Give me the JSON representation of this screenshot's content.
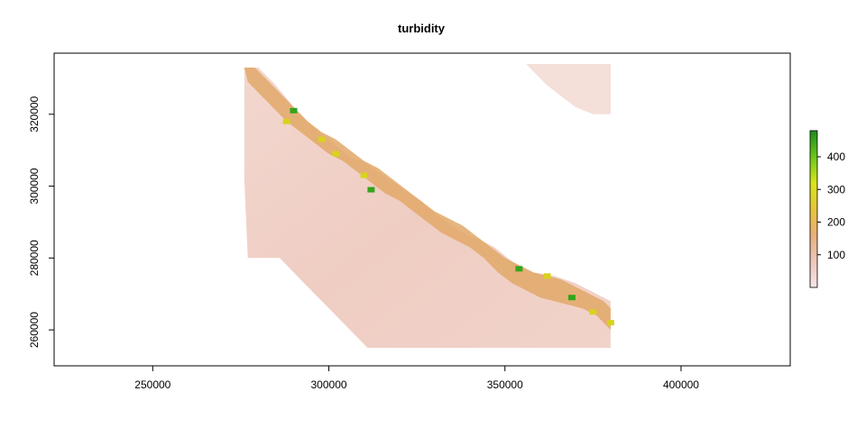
{
  "chart_data": {
    "type": "heatmap",
    "title": "turbidity",
    "xlabel": "",
    "ylabel": "",
    "xlim": [
      222000,
      431000
    ],
    "ylim": [
      250000,
      337000
    ],
    "x_ticks": [
      250000,
      300000,
      350000,
      400000
    ],
    "x_tick_labels": [
      "250000",
      "300000",
      "350000",
      "400000"
    ],
    "y_ticks": [
      260000,
      280000,
      300000,
      320000
    ],
    "y_tick_labels": [
      "260000",
      "280000",
      "300000",
      "320000"
    ],
    "grid": false,
    "legend": {
      "placement": "right",
      "type": "colorbar",
      "range": [
        0,
        480
      ],
      "ticks": [
        100,
        200,
        300,
        400
      ],
      "tick_labels": [
        "100",
        "200",
        "300",
        "400"
      ],
      "colors": [
        "#f5e6e6",
        "#edc6ba",
        "#e8b07a",
        "#e7c43a",
        "#d7e51a",
        "#6cc61b",
        "#1c8a1c"
      ]
    },
    "colors": {
      "water": "#efcdc3",
      "water_light": "#f4dfd9",
      "coastal_low": "#e5b38c",
      "coastal_mid": "#e2a868",
      "coastal_high": "#d9d21d",
      "max": "#33a51c"
    },
    "domain_outline": [
      [
        276000,
        333000
      ],
      [
        280000,
        333000
      ],
      [
        285000,
        328000
      ],
      [
        290000,
        322000
      ],
      [
        294000,
        318000
      ],
      [
        300000,
        313000
      ],
      [
        306000,
        308000
      ],
      [
        310000,
        307000
      ],
      [
        314000,
        304000
      ],
      [
        320000,
        300000
      ],
      [
        326000,
        296000
      ],
      [
        332000,
        291000
      ],
      [
        338000,
        287000
      ],
      [
        343000,
        285000
      ],
      [
        347000,
        283000
      ],
      [
        352000,
        279000
      ],
      [
        358000,
        276000
      ],
      [
        364000,
        275000
      ],
      [
        370000,
        273000
      ],
      [
        376000,
        270000
      ],
      [
        380000,
        268000
      ],
      [
        380000,
        255000
      ],
      [
        311000,
        255000
      ],
      [
        304000,
        262000
      ],
      [
        296000,
        270000
      ],
      [
        286000,
        280000
      ],
      [
        277000,
        280000
      ],
      [
        276000,
        302000
      ]
    ],
    "ne_patch_outline": [
      [
        356000,
        334000
      ],
      [
        380000,
        334000
      ],
      [
        380000,
        320000
      ],
      [
        375000,
        320000
      ],
      [
        370000,
        322000
      ],
      [
        362000,
        328000
      ]
    ],
    "coastal_band": [
      [
        [
          276000,
          333000
        ],
        [
          279000,
          333000
        ],
        [
          282000,
          330000
        ],
        [
          286000,
          326000
        ],
        [
          290000,
          322000
        ],
        [
          294000,
          318000
        ],
        [
          298000,
          315000
        ],
        [
          302000,
          313000
        ],
        [
          306000,
          310000
        ],
        [
          310000,
          307000
        ],
        [
          314000,
          305000
        ],
        [
          318000,
          302000
        ],
        [
          322000,
          299000
        ],
        [
          326000,
          296000
        ],
        [
          330000,
          293000
        ],
        [
          334000,
          291000
        ],
        [
          338000,
          289000
        ],
        [
          342000,
          286000
        ],
        [
          346000,
          283000
        ],
        [
          350000,
          280000
        ],
        [
          354000,
          278000
        ],
        [
          358000,
          276000
        ],
        [
          362000,
          275000
        ],
        [
          366000,
          274000
        ],
        [
          370000,
          272000
        ],
        [
          374000,
          270000
        ],
        [
          378000,
          268000
        ],
        [
          380000,
          266000
        ],
        [
          380000,
          260000
        ],
        [
          376000,
          264000
        ],
        [
          372000,
          266000
        ],
        [
          368000,
          267000
        ],
        [
          364000,
          268000
        ],
        [
          360000,
          269000
        ],
        [
          356000,
          271000
        ],
        [
          352000,
          273000
        ],
        [
          348000,
          276000
        ],
        [
          344000,
          280000
        ],
        [
          340000,
          283000
        ],
        [
          336000,
          285000
        ],
        [
          332000,
          287000
        ],
        [
          328000,
          290000
        ],
        [
          324000,
          293000
        ],
        [
          320000,
          296000
        ],
        [
          316000,
          298000
        ],
        [
          312000,
          301000
        ],
        [
          308000,
          304000
        ],
        [
          304000,
          307000
        ],
        [
          300000,
          309000
        ],
        [
          296000,
          312000
        ],
        [
          292000,
          315000
        ],
        [
          288000,
          318000
        ],
        [
          284000,
          322000
        ],
        [
          280000,
          326000
        ],
        [
          277000,
          329000
        ]
      ]
    ],
    "hotspots": [
      {
        "x": 290000,
        "y": 321000,
        "level": "max"
      },
      {
        "x": 288000,
        "y": 318000,
        "level": "high"
      },
      {
        "x": 298000,
        "y": 313000,
        "level": "high"
      },
      {
        "x": 302000,
        "y": 309000,
        "level": "high"
      },
      {
        "x": 310000,
        "y": 303000,
        "level": "high"
      },
      {
        "x": 312000,
        "y": 299000,
        "level": "max"
      },
      {
        "x": 354000,
        "y": 277000,
        "level": "max"
      },
      {
        "x": 362000,
        "y": 275000,
        "level": "high"
      },
      {
        "x": 369000,
        "y": 269000,
        "level": "max"
      },
      {
        "x": 375000,
        "y": 265000,
        "level": "high"
      },
      {
        "x": 380000,
        "y": 262000,
        "level": "high"
      }
    ]
  }
}
